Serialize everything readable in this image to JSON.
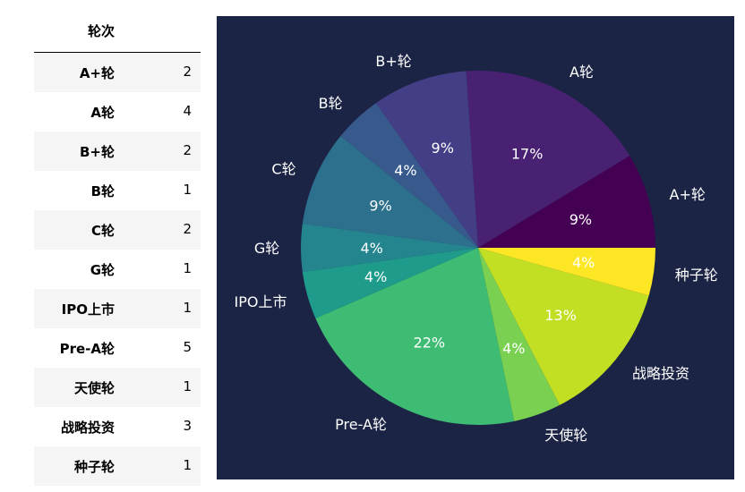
{
  "table": {
    "header": "轮次",
    "rows": [
      {
        "label": "A+轮",
        "count": "2"
      },
      {
        "label": "A轮",
        "count": "4"
      },
      {
        "label": "B+轮",
        "count": "2"
      },
      {
        "label": "B轮",
        "count": "1"
      },
      {
        "label": "C轮",
        "count": "2"
      },
      {
        "label": "G轮",
        "count": "1"
      },
      {
        "label": "IPO上市",
        "count": "1"
      },
      {
        "label": "Pre-A轮",
        "count": "5"
      },
      {
        "label": "天使轮",
        "count": "1"
      },
      {
        "label": "战略投资",
        "count": "3"
      },
      {
        "label": "种子轮",
        "count": "1"
      }
    ]
  },
  "chart_data": {
    "type": "pie",
    "title": "",
    "categories": [
      "A+轮",
      "A轮",
      "B+轮",
      "B轮",
      "C轮",
      "G轮",
      "IPO上市",
      "Pre-A轮",
      "天使轮",
      "战略投资",
      "种子轮"
    ],
    "values": [
      2,
      4,
      2,
      1,
      2,
      1,
      1,
      5,
      1,
      3,
      1
    ],
    "percent_labels": [
      "9%",
      "17%",
      "9%",
      "4%",
      "9%",
      "4%",
      "4%",
      "22%",
      "4%",
      "13%",
      "4%"
    ],
    "colors": [
      "#440154",
      "#482173",
      "#433e85",
      "#38598c",
      "#2d708e",
      "#25858e",
      "#1e9b8a",
      "#3fbc73",
      "#7ad151",
      "#c2df23",
      "#fde725"
    ],
    "direction": "counterclockwise",
    "start_angle_deg": 0,
    "legend": "none",
    "background": "#1b2445",
    "label_color": "#ffffff"
  }
}
